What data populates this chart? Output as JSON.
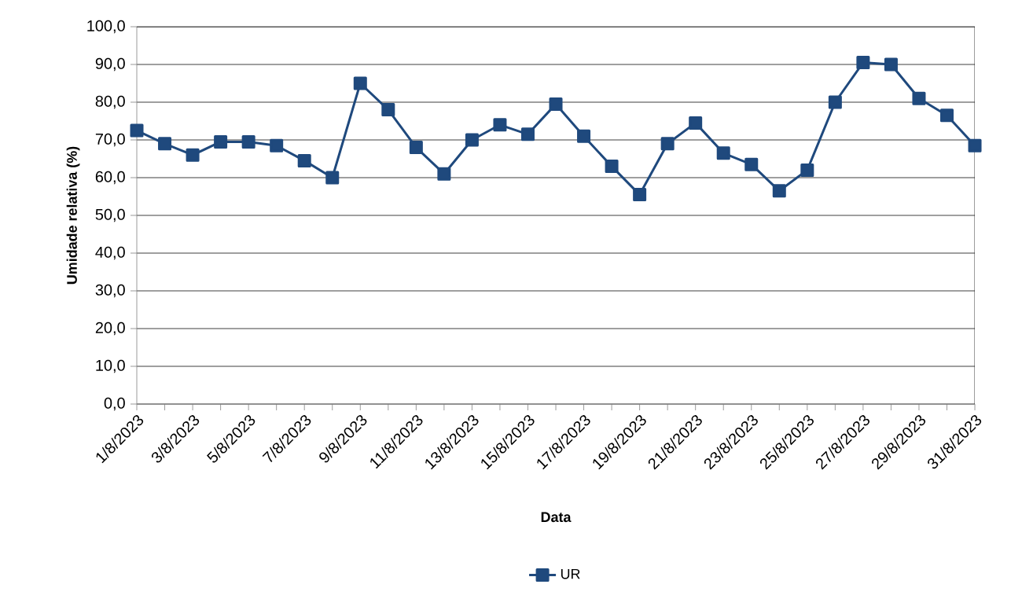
{
  "chart_data": {
    "type": "line",
    "xlabel": "Data",
    "ylabel": "Umidade relativa (%)",
    "categories": [
      "1/8/2023",
      null,
      "3/8/2023",
      null,
      "5/8/2023",
      null,
      "7/8/2023",
      null,
      "9/8/2023",
      null,
      "11/8/2023",
      null,
      "13/8/2023",
      null,
      "15/8/2023",
      null,
      "17/8/2023",
      null,
      "19/8/2023",
      null,
      "21/8/2023",
      null,
      "23/8/2023",
      null,
      "25/8/2023",
      null,
      "27/8/2023",
      null,
      "29/8/2023",
      null,
      "31/8/2023"
    ],
    "series": [
      {
        "name": "UR",
        "color": "#1f497d",
        "values": [
          72.5,
          69,
          66,
          69.5,
          69.5,
          68.5,
          64.5,
          60,
          85,
          78,
          68,
          61,
          70,
          74,
          71.5,
          79.5,
          71,
          63,
          55.5,
          69,
          74.5,
          66.5,
          63.5,
          56.5,
          62,
          80,
          90.5,
          90,
          81,
          76.5,
          68.5
        ]
      }
    ],
    "ylim": [
      0,
      100
    ],
    "yticks": [
      {
        "value": 0,
        "label": "0,0"
      },
      {
        "value": 10,
        "label": "10,0"
      },
      {
        "value": 20,
        "label": "20,0"
      },
      {
        "value": 30,
        "label": "30,0"
      },
      {
        "value": 40,
        "label": "40,0"
      },
      {
        "value": 50,
        "label": "50,0"
      },
      {
        "value": 60,
        "label": "60,0"
      },
      {
        "value": 70,
        "label": "70,0"
      },
      {
        "value": 80,
        "label": "80,0"
      },
      {
        "value": 90,
        "label": "90,0"
      },
      {
        "value": 100,
        "label": "100,0"
      }
    ],
    "grid": "y",
    "legend": "bottom",
    "marker": "square",
    "line_style": "solid"
  }
}
